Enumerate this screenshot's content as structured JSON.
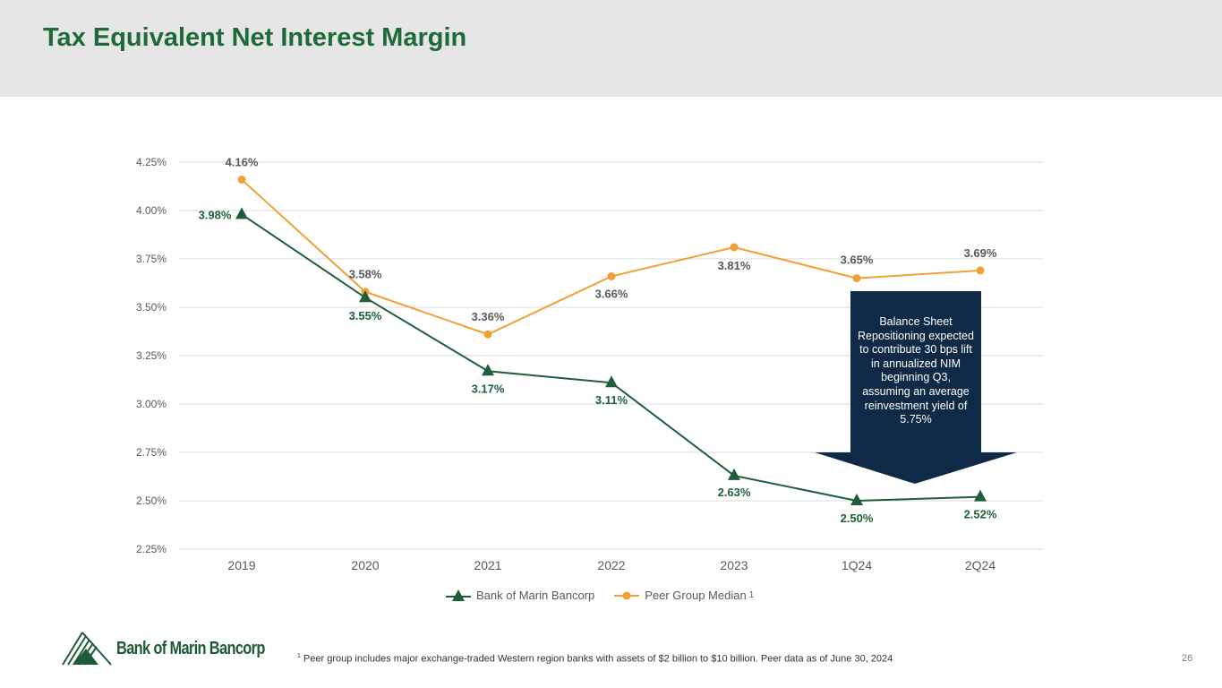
{
  "page": {
    "title": "Tax Equivalent Net Interest Margin",
    "page_number": "26",
    "footnote_marker": "1",
    "footnote": "Peer group includes major exchange-traded Western region banks with assets of $2 billion to $10 billion. Peer data as of June 30, 2024",
    "logo_text": "Bank of Marin Bancorp"
  },
  "callout": {
    "text": "Balance Sheet Repositioning expected to contribute 30 bps lift in annualized NIM beginning Q3, assuming an average reinvestment yield of 5.75%"
  },
  "colors": {
    "bank": "#1e5e38",
    "peer": "#f0a035",
    "title": "#1f6a3a",
    "callout": "#0e2a47",
    "grid": "#d9d9d9",
    "axis_text": "#595959"
  },
  "chart_data": {
    "type": "line",
    "title": "",
    "xlabel": "",
    "ylabel": "",
    "categories": [
      "2019",
      "2020",
      "2021",
      "2022",
      "2023",
      "1Q24",
      "2Q24"
    ],
    "ylim": [
      2.25,
      4.25
    ],
    "yticks": [
      "2.25%",
      "2.50%",
      "2.75%",
      "3.00%",
      "3.25%",
      "3.50%",
      "3.75%",
      "4.00%",
      "4.25%"
    ],
    "grid": true,
    "legend_position": "bottom",
    "series": [
      {
        "name": "Bank of Marin Bancorp",
        "marker": "triangle",
        "values": [
          3.98,
          3.55,
          3.17,
          3.11,
          2.63,
          2.5,
          2.52
        ],
        "labels": [
          "3.98%",
          "3.55%",
          "3.17%",
          "3.11%",
          "2.63%",
          "2.50%",
          "2.52%"
        ]
      },
      {
        "name": "Peer Group Median",
        "marker": "circle",
        "legend_superscript": "1",
        "values": [
          4.16,
          3.58,
          3.36,
          3.66,
          3.81,
          3.65,
          3.69
        ],
        "labels": [
          "4.16%",
          "3.58%",
          "3.36%",
          "3.66%",
          "3.81%",
          "3.65%",
          "3.69%"
        ]
      }
    ]
  }
}
